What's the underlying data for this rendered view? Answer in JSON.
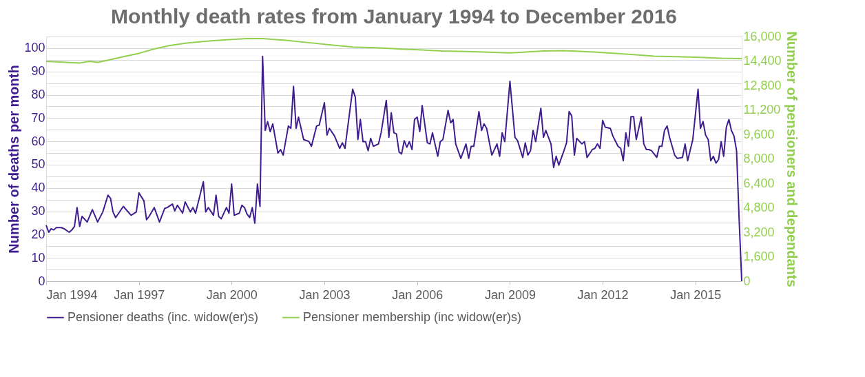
{
  "chart_data": {
    "type": "line",
    "title": "Monthly death rates from January 1994 to December 2016",
    "ylabel": "Number of deaths per month",
    "y2label": "Number of pensioners and dependants",
    "xlim": [
      "1994-01",
      "2016-07"
    ],
    "xticks": [
      {
        "value": "1994-01",
        "label": "Jan 1994"
      },
      {
        "value": "1997-01",
        "label": "Jan 1997"
      },
      {
        "value": "2000-01",
        "label": "Jan 2000"
      },
      {
        "value": "2003-01",
        "label": "Jan 2003"
      },
      {
        "value": "2006-01",
        "label": "Jan 2006"
      },
      {
        "value": "2009-01",
        "label": "Jan 2009"
      },
      {
        "value": "2012-01",
        "label": "Jan 2012"
      },
      {
        "value": "2015-01",
        "label": "Jan 2015"
      }
    ],
    "ylim": [
      0,
      105
    ],
    "yticks": [
      0,
      {
        "value": 5,
        "label": null
      },
      10,
      {
        "value": 15,
        "label": null
      },
      20,
      {
        "value": 25,
        "label": null
      },
      30,
      {
        "value": 35,
        "label": null
      },
      40,
      {
        "value": 45,
        "label": null
      },
      50,
      {
        "value": 55,
        "label": null
      },
      60,
      {
        "value": 65,
        "label": null
      },
      70,
      {
        "value": 75,
        "label": null
      },
      80,
      {
        "value": 85,
        "label": null
      },
      90,
      {
        "value": 95,
        "label": null
      },
      100,
      {
        "value": 105,
        "label": null
      }
    ],
    "y2lim": [
      0,
      16000
    ],
    "y2ticks": [
      0,
      {
        "value": 1600,
        "label": "1,600"
      },
      {
        "value": 3200,
        "label": "3,200"
      },
      {
        "value": 4800,
        "label": "4,800"
      },
      {
        "value": 6400,
        "label": "6,400"
      },
      {
        "value": 8000,
        "label": "8,000"
      },
      {
        "value": 9600,
        "label": "9,600"
      },
      {
        "value": 11200,
        "label": "11,200"
      },
      {
        "value": 12800,
        "label": "12,800"
      },
      {
        "value": 14400,
        "label": "14,400"
      },
      {
        "value": 16000,
        "label": "16,000"
      }
    ],
    "grid": "y",
    "legend": "bottom",
    "marker": "none",
    "line_style": "solid",
    "series": [
      {
        "name": "Pensioner deaths (inc. widow(er)s)",
        "color": "#3f1d8f",
        "x": [
          "1994-01",
          "1994-02",
          "1994-03",
          "1994-04",
          "1994-05",
          "1994-07",
          "1994-08",
          "1994-10",
          "1994-11",
          "1994-12",
          "1995-01",
          "1995-02",
          "1995-03",
          "1995-05",
          "1995-07",
          "1995-09",
          "1995-11",
          "1996-01",
          "1996-02",
          "1996-03",
          "1996-04",
          "1996-07",
          "1996-10",
          "1996-12",
          "1997-01",
          "1997-03",
          "1997-04",
          "1997-05",
          "1997-07",
          "1997-09",
          "1997-11",
          "1997-12",
          "1998-02",
          "1998-03",
          "1998-04",
          "1998-06",
          "1998-07",
          "1998-09",
          "1998-10",
          "1998-11",
          "1999-02",
          "1999-03",
          "1999-04",
          "1999-06",
          "1999-07",
          "1999-08",
          "1999-09",
          "1999-11",
          "1999-12",
          "2000-01",
          "2000-02",
          "2000-04",
          "2000-05",
          "2000-06",
          "2000-07",
          "2000-08",
          "2000-09",
          "2000-10",
          "2000-11",
          "2000-12",
          "2001-01",
          "2001-02",
          "2001-03",
          "2001-04",
          "2001-05",
          "2001-07",
          "2001-08",
          "2001-09",
          "2001-11",
          "2001-12",
          "2002-01",
          "2002-02",
          "2002-03",
          "2002-05",
          "2002-07",
          "2002-08",
          "2002-10",
          "2002-11",
          "2003-01",
          "2003-02",
          "2003-03",
          "2003-05",
          "2003-07",
          "2003-08",
          "2003-09",
          "2003-12",
          "2004-01",
          "2004-02",
          "2004-03",
          "2004-04",
          "2004-05",
          "2004-06",
          "2004-07",
          "2004-08",
          "2004-10",
          "2004-11",
          "2005-01",
          "2005-02",
          "2005-03",
          "2005-04",
          "2005-05",
          "2005-06",
          "2005-07",
          "2005-08",
          "2005-09",
          "2005-10",
          "2005-11",
          "2005-12",
          "2006-01",
          "2006-02",
          "2006-03",
          "2006-05",
          "2006-06",
          "2006-07",
          "2006-09",
          "2006-10",
          "2006-11",
          "2007-01",
          "2007-02",
          "2007-03",
          "2007-04",
          "2007-06",
          "2007-08",
          "2007-09",
          "2007-10",
          "2007-11",
          "2008-01",
          "2008-02",
          "2008-03",
          "2008-04",
          "2008-06",
          "2008-08",
          "2008-09",
          "2008-10",
          "2008-11",
          "2009-01",
          "2009-03",
          "2009-04",
          "2009-06",
          "2009-07",
          "2009-08",
          "2009-09",
          "2009-10",
          "2009-11",
          "2010-01",
          "2010-02",
          "2010-03",
          "2010-05",
          "2010-06",
          "2010-07",
          "2010-08",
          "2010-10",
          "2010-11",
          "2010-12",
          "2011-01",
          "2011-02",
          "2011-03",
          "2011-05",
          "2011-06",
          "2011-07",
          "2011-09",
          "2011-10",
          "2011-11",
          "2011-12",
          "2012-01",
          "2012-02",
          "2012-04",
          "2012-05",
          "2012-07",
          "2012-08",
          "2012-09",
          "2012-10",
          "2012-11",
          "2012-12",
          "2013-01",
          "2013-02",
          "2013-04",
          "2013-05",
          "2013-06",
          "2013-07",
          "2013-08",
          "2013-10",
          "2013-11",
          "2013-12",
          "2014-01",
          "2014-02",
          "2014-03",
          "2014-05",
          "2014-06",
          "2014-08",
          "2014-09",
          "2014-10",
          "2014-12",
          "2015-02",
          "2015-03",
          "2015-04",
          "2015-05",
          "2015-06",
          "2015-07",
          "2015-08",
          "2015-09",
          "2015-10",
          "2015-11",
          "2015-12",
          "2016-01",
          "2016-02",
          "2016-03",
          "2016-04",
          "2016-05",
          "2016-06",
          "2016-07"
        ],
        "values": [
          24,
          21,
          22.5,
          22,
          23,
          23,
          22.5,
          21,
          22,
          23.5,
          31.6,
          23.5,
          27.8,
          25.4,
          30.7,
          25.4,
          29.7,
          36.9,
          35.5,
          29.7,
          27.3,
          32.1,
          28.3,
          29.7,
          37.9,
          34.5,
          26.4,
          27.8,
          31.6,
          25.4,
          31.2,
          31.6,
          33.1,
          30.2,
          32.6,
          29.2,
          34,
          29.7,
          31.6,
          29.2,
          42.7,
          29.7,
          31.6,
          28.3,
          36.9,
          27.8,
          26.8,
          31.6,
          29.2,
          41.7,
          28.3,
          29.2,
          32.6,
          31.6,
          28.8,
          27.3,
          31.6,
          24.9,
          41.7,
          32.1,
          96.5,
          64.7,
          68.5,
          64.2,
          67.5,
          55,
          56.5,
          54.1,
          66.6,
          65.6,
          83.6,
          65.6,
          70.4,
          60.8,
          60,
          57.9,
          66.6,
          67,
          76.6,
          62.7,
          65.6,
          62.3,
          57,
          59.4,
          57,
          82.4,
          79,
          60.8,
          69.4,
          59.9,
          59.9,
          56,
          61.3,
          57.9,
          58.9,
          63.7,
          77.6,
          61.8,
          72.3,
          63.7,
          63.2,
          55.5,
          54.6,
          60.3,
          57.5,
          59.9,
          56.5,
          69.4,
          70.4,
          64.2,
          75.4,
          59.4,
          58.9,
          63.7,
          53.6,
          59.9,
          60.8,
          73.3,
          68,
          69.4,
          58.9,
          52.7,
          58.9,
          52.7,
          57.9,
          57.9,
          72.8,
          64.7,
          67.5,
          65.6,
          54.1,
          58.9,
          53.6,
          63.7,
          59.9,
          85.8,
          61.8,
          60.3,
          53.1,
          59.4,
          54.1,
          56,
          64.7,
          59.9,
          74.2,
          61.8,
          64.7,
          58.9,
          48.8,
          53.6,
          49.8,
          56,
          59.4,
          72.8,
          70.9,
          54.1,
          61.3,
          58.9,
          59.9,
          53.1,
          56.5,
          57,
          58.9,
          57,
          69,
          66.1,
          65.6,
          62.3,
          57.9,
          57,
          51.7,
          63.7,
          57.9,
          70.6,
          70.6,
          60.8,
          70.4,
          58.9,
          56.5,
          56.5,
          56,
          53.1,
          57.9,
          57.9,
          64.7,
          66.6,
          61.8,
          54.1,
          52.7,
          53.1,
          58.9,
          51.7,
          60.8,
          82.4,
          65.6,
          68.5,
          62.7,
          60.8,
          51.7,
          53.6,
          50.7,
          52.2,
          59.9,
          53.6,
          66.1,
          69.4,
          64.7,
          62.3,
          56,
          26,
          0
        ]
      },
      {
        "name": "Pensioner membership (inc widow(er)s)",
        "color": "#92cf4f",
        "axis": "y2",
        "x": [
          "1994-01",
          "1995-02",
          "1995-06",
          "1995-09",
          "1996-02",
          "1996-07",
          "1997-01",
          "1997-07",
          "1998-01",
          "1998-07",
          "1999-01",
          "1999-07",
          "2000-01",
          "2000-07",
          "2001-01",
          "2001-10",
          "2002-07",
          "2003-03",
          "2003-12",
          "2004-09",
          "2005-06",
          "2006-03",
          "2006-11",
          "2007-08",
          "2008-05",
          "2009-01",
          "2010-02",
          "2010-10",
          "2011-11",
          "2012-12",
          "2013-09",
          "2014-06",
          "2015-03",
          "2015-11",
          "2016-07"
        ],
        "values": [
          14380,
          14270,
          14380,
          14310,
          14490,
          14680,
          14900,
          15190,
          15410,
          15560,
          15660,
          15740,
          15810,
          15860,
          15860,
          15750,
          15600,
          15460,
          15310,
          15270,
          15190,
          15120,
          15050,
          15020,
          14970,
          14930,
          15050,
          15080,
          14970,
          14830,
          14720,
          14680,
          14640,
          14580,
          14560
        ]
      }
    ]
  }
}
